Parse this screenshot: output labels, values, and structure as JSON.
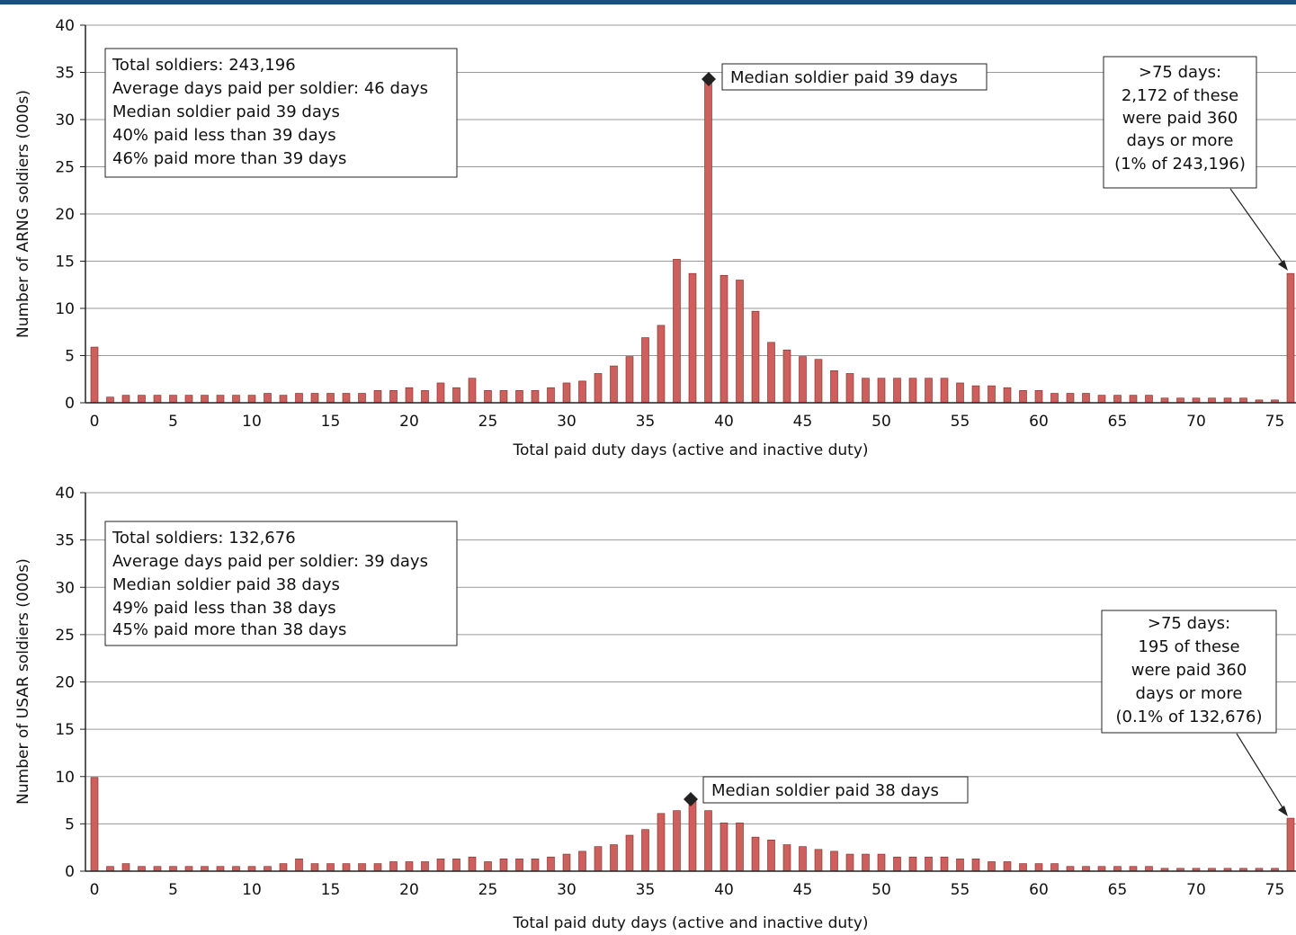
{
  "brand_color": "#1f4e79",
  "bar_color": "#cd5f5c",
  "chart_data": [
    {
      "type": "bar",
      "ylabel": "Number of ARNG soldiers (000s)",
      "xlabel": "Total paid duty days (active and inactive duty)",
      "ylim": [
        0,
        40
      ],
      "yticks": [
        "0",
        "5",
        "10",
        "15",
        "20",
        "25",
        "30",
        "35",
        "40"
      ],
      "xticks": [
        "0",
        "5",
        "10",
        "15",
        "20",
        "25",
        "30",
        "35",
        "40",
        "45",
        "50",
        "55",
        "60",
        "65",
        "70",
        "75"
      ],
      "grid": true,
      "values": [
        5.9,
        0.6,
        0.8,
        0.8,
        0.8,
        0.8,
        0.8,
        0.8,
        0.8,
        0.8,
        0.8,
        1.0,
        0.8,
        1.0,
        1.0,
        1.0,
        1.0,
        1.0,
        1.3,
        1.3,
        1.6,
        1.3,
        2.1,
        1.6,
        2.6,
        1.3,
        1.3,
        1.3,
        1.3,
        1.6,
        2.1,
        2.3,
        3.1,
        3.9,
        4.9,
        6.9,
        8.2,
        15.2,
        13.7,
        34.1,
        13.5,
        13.0,
        9.7,
        6.4,
        5.6,
        4.9,
        4.6,
        3.4,
        3.1,
        2.6,
        2.6,
        2.6,
        2.6,
        2.6,
        2.6,
        2.1,
        1.8,
        1.8,
        1.6,
        1.3,
        1.3,
        1.0,
        1.0,
        1.0,
        0.8,
        0.8,
        0.8,
        0.8,
        0.5,
        0.5,
        0.5,
        0.5,
        0.5,
        0.5,
        0.3,
        0.3,
        13.7
      ],
      "stats_box": [
        "Total soldiers: 243,196",
        "Average days paid per soldier: 46 days",
        "Median soldier paid 39 days",
        "40% paid less than 39 days",
        "46% paid more than 39 days"
      ],
      "median_label": "Median soldier paid 39 days",
      "median_day": 39,
      "tail_box": [
        ">75 days:",
        "2,172 of these",
        "were paid 360",
        "days or more",
        "(1% of 243,196)"
      ]
    },
    {
      "type": "bar",
      "ylabel": "Number of USAR soldiers (000s)",
      "xlabel": "Total paid duty days (active and inactive duty)",
      "ylim": [
        0,
        40
      ],
      "yticks": [
        "0",
        "5",
        "10",
        "15",
        "20",
        "25",
        "30",
        "35",
        "40"
      ],
      "xticks": [
        "0",
        "5",
        "10",
        "15",
        "20",
        "25",
        "30",
        "35",
        "40",
        "45",
        "50",
        "55",
        "60",
        "65",
        "70",
        "75"
      ],
      "grid": true,
      "values": [
        9.9,
        0.5,
        0.8,
        0.5,
        0.5,
        0.5,
        0.5,
        0.5,
        0.5,
        0.5,
        0.5,
        0.5,
        0.8,
        1.3,
        0.8,
        0.8,
        0.8,
        0.8,
        0.8,
        1.0,
        1.0,
        1.0,
        1.3,
        1.3,
        1.5,
        1.0,
        1.3,
        1.3,
        1.3,
        1.5,
        1.8,
        2.1,
        2.6,
        2.8,
        3.8,
        4.4,
        6.1,
        6.4,
        7.7,
        6.4,
        5.1,
        5.1,
        3.6,
        3.3,
        2.8,
        2.6,
        2.3,
        2.1,
        1.8,
        1.8,
        1.8,
        1.5,
        1.5,
        1.5,
        1.5,
        1.3,
        1.3,
        1.0,
        1.0,
        0.8,
        0.8,
        0.8,
        0.5,
        0.5,
        0.5,
        0.5,
        0.5,
        0.5,
        0.3,
        0.3,
        0.3,
        0.3,
        0.3,
        0.3,
        0.3,
        0.3,
        5.6
      ],
      "stats_box": [
        "Total soldiers: 132,676",
        "Average days paid per soldier: 39 days",
        "Median soldier paid 38 days",
        "49% paid less than 38 days",
        "45% paid more than 38 days"
      ],
      "median_label": "Median soldier paid 38 days",
      "median_day": 38,
      "tail_box": [
        ">75 days:",
        "195 of these",
        "were paid 360",
        "days or more",
        "(0.1% of 132,676)"
      ]
    }
  ]
}
